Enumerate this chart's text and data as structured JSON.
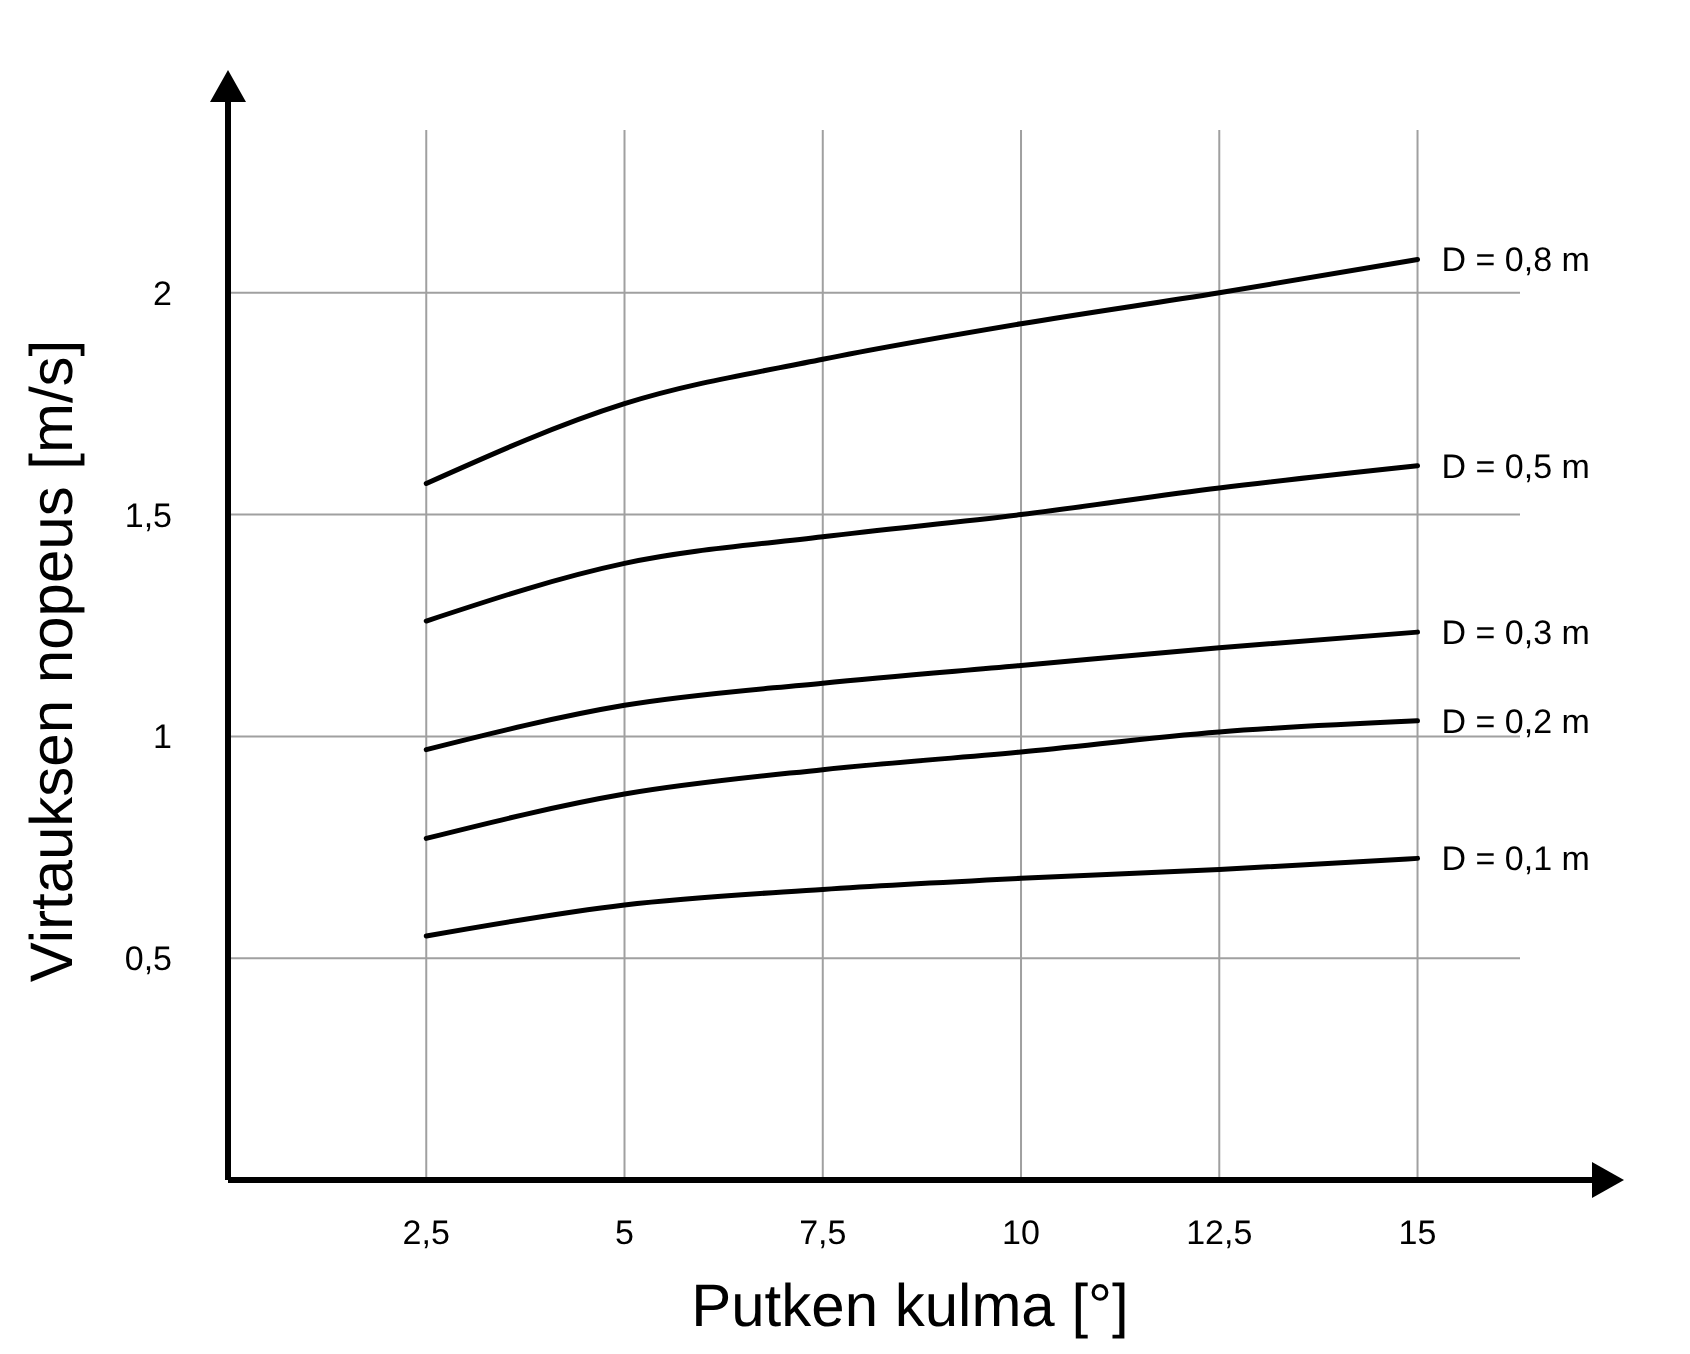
{
  "chart_data": {
    "type": "line",
    "xlabel": "Putken kulma [°]",
    "ylabel": "Virtauksen nopeus [m/s]",
    "x": [
      2.5,
      5,
      7.5,
      10,
      12.5,
      15
    ],
    "series": [
      {
        "name": "D = 0,8 m",
        "color": "#000000",
        "values": [
          1.57,
          1.75,
          1.85,
          1.93,
          2.0,
          2.075
        ]
      },
      {
        "name": "D = 0,5 m",
        "color": "#000000",
        "values": [
          1.26,
          1.39,
          1.45,
          1.5,
          1.56,
          1.61
        ]
      },
      {
        "name": "D = 0,3 m",
        "color": "#000000",
        "values": [
          0.97,
          1.07,
          1.12,
          1.16,
          1.2,
          1.235
        ]
      },
      {
        "name": "D = 0,2 m",
        "color": "#000000",
        "values": [
          0.77,
          0.87,
          0.925,
          0.965,
          1.01,
          1.035
        ]
      },
      {
        "name": "D = 0,1 m",
        "color": "#000000",
        "values": [
          0.55,
          0.62,
          0.655,
          0.68,
          0.7,
          0.725
        ]
      }
    ],
    "xlim": [
      0,
      17.2
    ],
    "ylim": [
      0,
      2.43
    ],
    "xticks": [
      {
        "value": 2.5,
        "label": "2,5"
      },
      5,
      {
        "value": 7.5,
        "label": "7,5"
      },
      10,
      {
        "value": 12.5,
        "label": "12,5"
      },
      15
    ],
    "yticks": [
      {
        "value": 0.5,
        "label": "0,5"
      },
      1,
      {
        "value": 1.5,
        "label": "1,5"
      },
      2
    ],
    "grid": true,
    "legend": false,
    "marker": "none",
    "line_style": "solid"
  }
}
